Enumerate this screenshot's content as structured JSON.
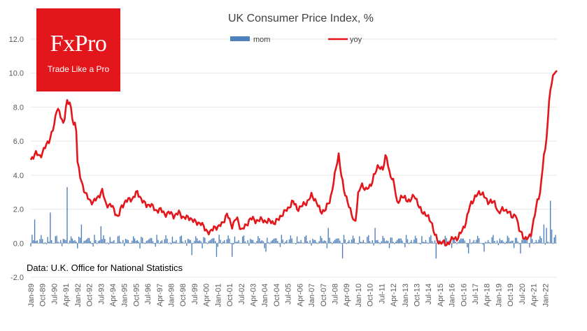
{
  "logo": {
    "brand": "FxPro",
    "tagline": "Trade Like a Pro"
  },
  "chart_data": {
    "type": "bar+line",
    "title": "UK Consumer  Price Index, %",
    "source_note": "Data: U.K. Office for National Statistics",
    "ylim": [
      -2.0,
      12.0
    ],
    "yticks": [
      "-2.0",
      "0.0",
      "2.0",
      "4.0",
      "6.0",
      "8.0",
      "10.0",
      "12.0"
    ],
    "legend": [
      {
        "name": "mom",
        "type": "bar",
        "color": "#4f81bd"
      },
      {
        "name": "yoy",
        "type": "line",
        "color": "#e3161b"
      }
    ],
    "legend_position": "top-center",
    "xticks": [
      "Jan-89",
      "Oct-89",
      "Jul-90",
      "Apr-91",
      "Jan-92",
      "Oct-92",
      "Jul-93",
      "Apr-94",
      "Jan-95",
      "Oct-95",
      "Jul-96",
      "Apr-97",
      "Jan-98",
      "Oct-98",
      "Jul-99",
      "Apr-00",
      "Jan-01",
      "Oct-01",
      "Jul-02",
      "Apr-03",
      "Jan-04",
      "Oct-04",
      "Jul-05",
      "Apr-06",
      "Jan-07",
      "Oct-07",
      "Jul-08",
      "Apr-09",
      "Jan-10",
      "Oct-10",
      "Jul-11",
      "Apr-12",
      "Jan-13",
      "Oct-13",
      "Jul-14",
      "Apr-15",
      "Jan-16",
      "Oct-16",
      "Jul-17",
      "Apr-18",
      "Jan-19",
      "Oct-19",
      "Jul-20",
      "Apr-21",
      "Jan-22"
    ],
    "series": [
      {
        "name": "yoy",
        "anchors": [
          [
            1989.0,
            4.9
          ],
          [
            1989.3,
            5.3
          ],
          [
            1989.6,
            5.1
          ],
          [
            1989.9,
            5.6
          ],
          [
            1990.2,
            6.1
          ],
          [
            1990.5,
            6.9
          ],
          [
            1990.7,
            8.1
          ],
          [
            1990.9,
            7.5
          ],
          [
            1991.1,
            6.9
          ],
          [
            1991.3,
            8.4
          ],
          [
            1991.5,
            8.2
          ],
          [
            1991.75,
            7.0
          ],
          [
            1991.9,
            7.1
          ],
          [
            1992.0,
            4.7
          ],
          [
            1992.2,
            3.8
          ],
          [
            1992.5,
            2.9
          ],
          [
            1992.8,
            2.5
          ],
          [
            1993.0,
            2.4
          ],
          [
            1993.3,
            2.7
          ],
          [
            1993.6,
            3.1
          ],
          [
            1993.8,
            2.3
          ],
          [
            1994.2,
            2.2
          ],
          [
            1994.6,
            1.5
          ],
          [
            1994.8,
            2.1
          ],
          [
            1995.1,
            2.5
          ],
          [
            1995.5,
            2.6
          ],
          [
            1995.8,
            3.0
          ],
          [
            1996.1,
            2.6
          ],
          [
            1996.4,
            2.2
          ],
          [
            1996.7,
            2.3
          ],
          [
            1997.0,
            1.9
          ],
          [
            1997.3,
            2.0
          ],
          [
            1997.6,
            1.7
          ],
          [
            1997.9,
            1.8
          ],
          [
            1998.2,
            1.6
          ],
          [
            1998.5,
            1.8
          ],
          [
            1998.8,
            1.5
          ],
          [
            1999.2,
            1.5
          ],
          [
            1999.6,
            1.2
          ],
          [
            1999.9,
            1.2
          ],
          [
            2000.2,
            0.8
          ],
          [
            2000.5,
            0.6
          ],
          [
            2000.8,
            1.0
          ],
          [
            2001.0,
            0.9
          ],
          [
            2001.3,
            1.2
          ],
          [
            2001.6,
            1.7
          ],
          [
            2001.9,
            1.0
          ],
          [
            2002.2,
            1.5
          ],
          [
            2002.5,
            0.8
          ],
          [
            2002.8,
            1.0
          ],
          [
            2003.1,
            1.5
          ],
          [
            2003.4,
            1.3
          ],
          [
            2003.7,
            1.4
          ],
          [
            2004.0,
            1.3
          ],
          [
            2004.3,
            1.3
          ],
          [
            2004.6,
            1.2
          ],
          [
            2004.9,
            1.4
          ],
          [
            2005.2,
            1.8
          ],
          [
            2005.5,
            2.0
          ],
          [
            2005.8,
            2.5
          ],
          [
            2006.1,
            2.0
          ],
          [
            2006.4,
            2.2
          ],
          [
            2006.7,
            2.4
          ],
          [
            2007.0,
            2.8
          ],
          [
            2007.3,
            2.5
          ],
          [
            2007.6,
            1.8
          ],
          [
            2007.9,
            2.0
          ],
          [
            2008.2,
            2.5
          ],
          [
            2008.5,
            4.0
          ],
          [
            2008.75,
            5.2
          ],
          [
            2008.9,
            4.2
          ],
          [
            2009.1,
            3.0
          ],
          [
            2009.4,
            2.3
          ],
          [
            2009.6,
            1.6
          ],
          [
            2009.8,
            1.1
          ],
          [
            2010.0,
            2.9
          ],
          [
            2010.2,
            3.4
          ],
          [
            2010.5,
            3.2
          ],
          [
            2010.8,
            3.3
          ],
          [
            2011.0,
            4.0
          ],
          [
            2011.3,
            4.5
          ],
          [
            2011.6,
            4.4
          ],
          [
            2011.8,
            5.2
          ],
          [
            2012.0,
            4.2
          ],
          [
            2012.3,
            3.5
          ],
          [
            2012.5,
            2.4
          ],
          [
            2012.8,
            2.7
          ],
          [
            2013.0,
            2.7
          ],
          [
            2013.3,
            2.4
          ],
          [
            2013.6,
            2.9
          ],
          [
            2013.9,
            2.1
          ],
          [
            2014.1,
            1.9
          ],
          [
            2014.4,
            1.6
          ],
          [
            2014.7,
            1.3
          ],
          [
            2014.9,
            0.5
          ],
          [
            2015.2,
            0.0
          ],
          [
            2015.4,
            0.1
          ],
          [
            2015.6,
            -0.1
          ],
          [
            2015.9,
            0.1
          ],
          [
            2016.1,
            0.3
          ],
          [
            2016.4,
            0.3
          ],
          [
            2016.7,
            0.8
          ],
          [
            2016.9,
            1.2
          ],
          [
            2017.2,
            2.3
          ],
          [
            2017.5,
            2.7
          ],
          [
            2017.8,
            3.0
          ],
          [
            2018.0,
            2.9
          ],
          [
            2018.3,
            2.4
          ],
          [
            2018.5,
            2.5
          ],
          [
            2018.8,
            2.3
          ],
          [
            2019.0,
            1.8
          ],
          [
            2019.3,
            2.0
          ],
          [
            2019.6,
            1.9
          ],
          [
            2019.9,
            1.5
          ],
          [
            2020.1,
            1.8
          ],
          [
            2020.3,
            0.8
          ],
          [
            2020.5,
            0.6
          ],
          [
            2020.7,
            0.2
          ],
          [
            2020.9,
            0.3
          ],
          [
            2021.1,
            0.6
          ],
          [
            2021.3,
            1.5
          ],
          [
            2021.5,
            2.5
          ],
          [
            2021.7,
            3.1
          ],
          [
            2021.9,
            5.1
          ],
          [
            2022.0,
            5.4
          ],
          [
            2022.15,
            7.0
          ],
          [
            2022.3,
            9.0
          ],
          [
            2022.45,
            9.4
          ],
          [
            2022.55,
            10.1
          ],
          [
            2022.7,
            10.1
          ]
        ]
      },
      {
        "name": "mom",
        "amplitude": 0.35,
        "spikes": [
          [
            1991.3,
            3.3
          ],
          [
            1990.25,
            1.8
          ],
          [
            1989.25,
            1.4
          ],
          [
            2022.3,
            2.5
          ],
          [
            1993.5,
            1.0
          ],
          [
            1992.25,
            1.1
          ],
          [
            2008.1,
            0.9
          ],
          [
            2011.1,
            0.9
          ],
          [
            2021.9,
            1.1
          ],
          [
            2022.1,
            0.9
          ],
          [
            2022.45,
            0.8
          ],
          [
            2015.0,
            -0.9
          ],
          [
            2020.45,
            -0.6
          ],
          [
            1999.3,
            -0.7
          ],
          [
            2000.9,
            -0.8
          ],
          [
            2001.9,
            -0.8
          ],
          [
            2009.0,
            -0.9
          ],
          [
            2004.1,
            -0.5
          ],
          [
            2017.1,
            -0.6
          ],
          [
            2018.1,
            -0.5
          ]
        ]
      }
    ]
  }
}
